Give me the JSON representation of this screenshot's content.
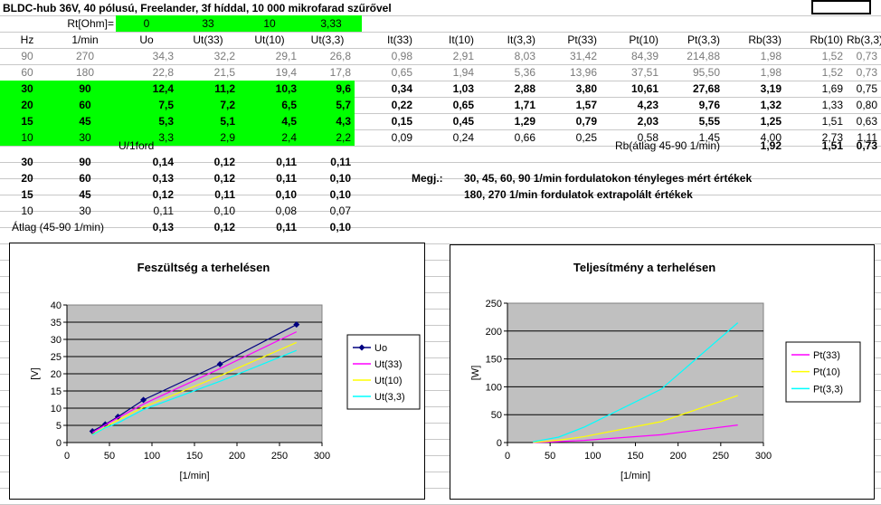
{
  "sheet": {
    "title": "BLDC-hub 36V, 40 pólusú, Freelander, 3f híddal, 10 000 mikrofarad szűrővel",
    "rt_label": "Rt[Ohm]=",
    "rt_values": [
      "0",
      "33",
      "10",
      "3,33"
    ],
    "headers": [
      "Hz",
      "1/min",
      "Uo",
      "Ut(33)",
      "Ut(10)",
      "Ut(3,3)",
      "It(33)",
      "It(10)",
      "It(3,3)",
      "Pt(33)",
      "Pt(10)",
      "Pt(3,3)",
      "Rb(33)",
      "Rb(10)",
      "Rb(3,3)"
    ],
    "rows": [
      [
        "90",
        "270",
        "34,3",
        "32,2",
        "29,1",
        "26,8",
        "0,98",
        "2,91",
        "8,03",
        "31,42",
        "84,39",
        "214,88",
        "1,98",
        "1,52",
        "0,73"
      ],
      [
        "60",
        "180",
        "22,8",
        "21,5",
        "19,4",
        "17,8",
        "0,65",
        "1,94",
        "5,36",
        "13,96",
        "37,51",
        "95,50",
        "1,98",
        "1,52",
        "0,73"
      ],
      [
        "30",
        "90",
        "12,4",
        "11,2",
        "10,3",
        "9,6",
        "0,34",
        "1,03",
        "2,88",
        "3,80",
        "10,61",
        "27,68",
        "3,19",
        "1,69",
        "0,75"
      ],
      [
        "20",
        "60",
        "7,5",
        "7,2",
        "6,5",
        "5,7",
        "0,22",
        "0,65",
        "1,71",
        "1,57",
        "4,23",
        "9,76",
        "1,32",
        "1,33",
        "0,80"
      ],
      [
        "15",
        "45",
        "5,3",
        "5,1",
        "4,5",
        "4,3",
        "0,15",
        "0,45",
        "1,29",
        "0,79",
        "2,03",
        "5,55",
        "1,25",
        "1,51",
        "0,63"
      ],
      [
        "10",
        "30",
        "3,3",
        "2,9",
        "2,4",
        "2,2",
        "0,09",
        "0,24",
        "0,66",
        "0,25",
        "0,58",
        "1,45",
        "4,00",
        "2,73",
        "1,11"
      ]
    ],
    "uford_label": "U/1ford",
    "rb_avg_label": "Rb(átlag 45-90 1/min)",
    "rb_avg_values": [
      "1,92",
      "1,51",
      "0,73"
    ],
    "uford_rows": [
      [
        "30",
        "90",
        "0,14",
        "0,12",
        "0,11",
        "0,11"
      ],
      [
        "20",
        "60",
        "0,13",
        "0,12",
        "0,11",
        "0,10"
      ],
      [
        "15",
        "45",
        "0,12",
        "0,11",
        "0,10",
        "0,10"
      ],
      [
        "10",
        "30",
        "0,11",
        "0,10",
        "0,08",
        "0,07"
      ]
    ],
    "avg_label": "Átlag (45-90 1/min)",
    "avg_values": [
      "0,13",
      "0,12",
      "0,11",
      "0,10"
    ],
    "note_label": "Megj.:",
    "note_lines": [
      "30, 45, 60, 90 1/min fordulatokon tényleges mért értékek",
      "180, 270 1/min fordulatok extrapolált értékek"
    ]
  },
  "colors": {
    "highlight": "#00ff00",
    "plot_bg": "#c0c0c0",
    "uo": "#000080",
    "s33": "#ff00ff",
    "s10": "#ffff00",
    "s33b": "#00ffff"
  },
  "chart_data": [
    {
      "type": "line",
      "title": "Feszültség a terhelésen",
      "xlabel": "[1/min]",
      "ylabel": "[V]",
      "xlim": [
        0,
        300
      ],
      "ylim": [
        0,
        40
      ],
      "xticks": [
        0,
        50,
        100,
        150,
        200,
        250,
        300
      ],
      "yticks": [
        0,
        5,
        10,
        15,
        20,
        25,
        30,
        35,
        40
      ],
      "grid": true,
      "legend": "right",
      "x": [
        30,
        45,
        60,
        90,
        180,
        270
      ],
      "series": [
        {
          "name": "Uo",
          "values": [
            3.3,
            5.3,
            7.5,
            12.4,
            22.8,
            34.3
          ],
          "color": "#000080",
          "markers": true
        },
        {
          "name": "Ut(33)",
          "values": [
            2.9,
            5.1,
            7.2,
            11.2,
            21.5,
            32.2
          ],
          "color": "#ff00ff"
        },
        {
          "name": "Ut(10)",
          "values": [
            2.4,
            4.5,
            6.5,
            10.3,
            19.4,
            29.1
          ],
          "color": "#ffff00"
        },
        {
          "name": "Ut(3,3)",
          "values": [
            2.2,
            4.3,
            5.7,
            9.6,
            17.8,
            26.8
          ],
          "color": "#00ffff"
        }
      ]
    },
    {
      "type": "line",
      "title": "Teljesítmény a terhelésen",
      "xlabel": "[1/min]",
      "ylabel": "[W]",
      "xlim": [
        0,
        300
      ],
      "ylim": [
        0,
        250
      ],
      "xticks": [
        0,
        50,
        100,
        150,
        200,
        250,
        300
      ],
      "yticks": [
        0,
        50,
        100,
        150,
        200,
        250
      ],
      "grid": true,
      "legend": "right",
      "x": [
        30,
        45,
        60,
        90,
        180,
        270
      ],
      "series": [
        {
          "name": "Pt(33)",
          "values": [
            0.25,
            0.79,
            1.57,
            3.8,
            13.96,
            31.42
          ],
          "color": "#ff00ff"
        },
        {
          "name": "Pt(10)",
          "values": [
            0.58,
            2.03,
            4.23,
            10.61,
            37.51,
            84.39
          ],
          "color": "#ffff00"
        },
        {
          "name": "Pt(3,3)",
          "values": [
            1.45,
            5.55,
            9.76,
            27.68,
            95.5,
            214.88
          ],
          "color": "#00ffff"
        }
      ]
    }
  ]
}
